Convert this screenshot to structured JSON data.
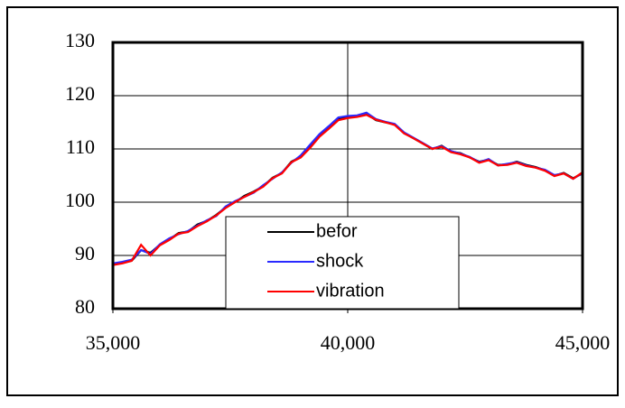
{
  "chart_data": {
    "type": "line",
    "x": [
      35000,
      35200,
      35400,
      35600,
      35800,
      36000,
      36200,
      36400,
      36600,
      36800,
      37000,
      37200,
      37400,
      37600,
      37800,
      38000,
      38200,
      38400,
      38600,
      38800,
      39000,
      39200,
      39400,
      39600,
      39800,
      40000,
      40200,
      40400,
      40600,
      40800,
      41000,
      41200,
      41400,
      41600,
      41800,
      42000,
      42200,
      42400,
      42600,
      42800,
      43000,
      43200,
      43400,
      43600,
      43800,
      44000,
      44200,
      44400,
      44600,
      44800,
      45000
    ],
    "series": [
      {
        "name": "befor",
        "color": "#000000",
        "values": [
          88.3,
          88.6,
          89,
          91,
          90.5,
          92,
          93,
          94.2,
          94.5,
          95.8,
          96.5,
          97.6,
          99,
          100,
          101.2,
          102,
          103,
          104.6,
          105.5,
          107.6,
          108.5,
          110.5,
          112.6,
          114,
          115.6,
          116,
          116.1,
          116.6,
          115.4,
          115,
          114.6,
          113,
          112,
          111,
          110,
          110.6,
          109.5,
          109.2,
          108.4,
          107.6,
          108,
          107,
          107.1,
          107.6,
          107,
          106.6,
          106,
          105,
          105.5,
          104.5,
          105.4
        ]
      },
      {
        "name": "shock",
        "color": "#2a2aff",
        "values": [
          88.5,
          88.8,
          89.2,
          91,
          90.3,
          92.1,
          93.2,
          94,
          94.6,
          95.6,
          96.6,
          97.4,
          99.2,
          100.2,
          101,
          101.8,
          103.2,
          104.4,
          105.6,
          107.4,
          108.8,
          110.8,
          112.8,
          114.3,
          115.9,
          116.2,
          116.3,
          116.8,
          115.6,
          115.1,
          114.7,
          113.1,
          112.1,
          111.1,
          110.1,
          110.5,
          109.6,
          109.1,
          108.5,
          107.5,
          108.1,
          106.9,
          107.2,
          107.5,
          106.9,
          106.5,
          106.1,
          105.1,
          105.4,
          104.4,
          105.5
        ]
      },
      {
        "name": "vibration",
        "color": "#ff0000",
        "values": [
          88.2,
          88.5,
          89,
          92,
          90,
          91.9,
          92.9,
          94.1,
          94.4,
          95.5,
          96.4,
          97.5,
          98.9,
          100,
          101,
          101.9,
          102.9,
          104.5,
          105.4,
          107.5,
          108.4,
          110.2,
          112.3,
          113.8,
          115.4,
          115.8,
          116,
          116.4,
          115.5,
          115,
          114.5,
          112.9,
          112,
          111,
          110,
          110.4,
          109.4,
          109,
          108.4,
          107.4,
          107.9,
          106.9,
          107,
          107.4,
          106.8,
          106.5,
          105.9,
          104.9,
          105.4,
          104.4,
          105.6
        ]
      }
    ],
    "xlim": [
      35000,
      45000
    ],
    "xticks": [
      {
        "value": 35000,
        "label": "35,000"
      },
      {
        "value": 40000,
        "label": "40,000"
      },
      {
        "value": 45000,
        "label": "45,000"
      }
    ],
    "ylim": [
      80,
      130
    ],
    "yticks": [
      80,
      90,
      100,
      110,
      120,
      130
    ],
    "grid": true,
    "x_grid_at": [
      40000
    ],
    "legend": "bottom-center"
  }
}
